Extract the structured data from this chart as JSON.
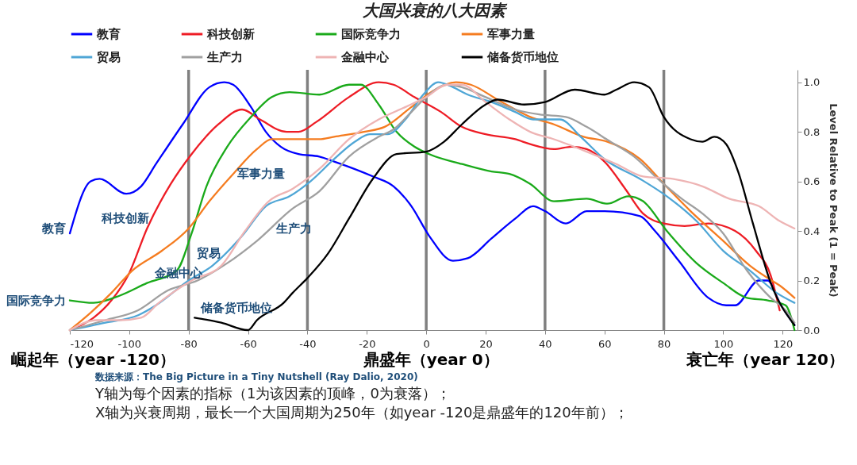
{
  "chart_data": {
    "type": "line",
    "title": "大国兴衰的八大因素",
    "ylabel": "Level Relative to Peak (1 = Peak)",
    "xlim": [
      -120,
      125
    ],
    "xticks": [
      -120,
      -100,
      -80,
      -60,
      -40,
      -20,
      0,
      20,
      40,
      60,
      80,
      100,
      120
    ],
    "ylim": [
      0,
      1.05
    ],
    "yticks": [
      {
        "value": 0,
        "label": "0.0"
      },
      {
        "value": 0.2,
        "label": "0.2"
      },
      {
        "value": 0.4,
        "label": "0.4"
      },
      {
        "value": 0.6,
        "label": "0.6"
      },
      {
        "value": 0.8,
        "label": "0.8"
      },
      {
        "value": 1,
        "label": "1.0"
      }
    ],
    "legend": "top",
    "series": [
      {
        "name": "教育",
        "color": "#0000ff",
        "x": [
          -120,
          -113,
          -110,
          -101,
          -96,
          -91,
          -82,
          -73,
          -68,
          -65,
          -59,
          -54,
          -49,
          -43,
          -36,
          -31,
          -18,
          -11,
          -5,
          1,
          9,
          14,
          22,
          30,
          36,
          40,
          47,
          54,
          60,
          72,
          77,
          85,
          95,
          101,
          104,
          112,
          115,
          119,
          124
        ],
        "values": [
          0.39,
          0.6,
          0.61,
          0.55,
          0.58,
          0.67,
          0.83,
          0.98,
          1.0,
          0.99,
          0.9,
          0.8,
          0.74,
          0.71,
          0.7,
          0.68,
          0.62,
          0.58,
          0.5,
          0.38,
          0.28,
          0.29,
          0.37,
          0.45,
          0.5,
          0.48,
          0.43,
          0.48,
          0.48,
          0.46,
          0.4,
          0.28,
          0.13,
          0.1,
          0.1,
          0.2,
          0.2,
          0.11,
          0.02
        ]
      },
      {
        "name": "科技创新",
        "color": "#ee1c25",
        "x": [
          -120,
          -112,
          -106,
          -100,
          -94,
          -86,
          -79,
          -70,
          -62,
          -56,
          -47,
          -43,
          -37,
          -26,
          -16,
          -11,
          -4,
          5,
          12,
          20,
          30,
          35,
          43,
          49,
          54,
          60,
          67,
          73,
          80,
          87,
          95,
          104,
          111,
          116,
          119
        ],
        "values": [
          0,
          0.05,
          0.12,
          0.23,
          0.41,
          0.59,
          0.71,
          0.83,
          0.89,
          0.85,
          0.8,
          0.8,
          0.84,
          0.94,
          1.0,
          0.99,
          0.94,
          0.88,
          0.82,
          0.79,
          0.77,
          0.75,
          0.73,
          0.74,
          0.73,
          0.68,
          0.57,
          0.47,
          0.43,
          0.42,
          0.43,
          0.4,
          0.32,
          0.22,
          0.08
        ]
      },
      {
        "name": "国际竞争力",
        "color": "#1aaa1a",
        "x": [
          -120,
          -112,
          -103,
          -94,
          -84,
          -79,
          -74,
          -67,
          -59,
          -52,
          -46,
          -36,
          -26,
          -22,
          -16,
          -10,
          -4,
          1,
          12,
          22,
          28,
          35,
          43,
          54,
          61,
          68,
          73,
          81,
          91,
          100,
          108,
          115,
          121,
          124
        ],
        "values": [
          0.12,
          0.11,
          0.14,
          0.19,
          0.24,
          0.39,
          0.58,
          0.74,
          0.86,
          0.94,
          0.96,
          0.95,
          0.99,
          0.99,
          0.91,
          0.8,
          0.74,
          0.71,
          0.67,
          0.64,
          0.63,
          0.59,
          0.52,
          0.53,
          0.51,
          0.54,
          0.52,
          0.4,
          0.27,
          0.19,
          0.13,
          0.12,
          0.1,
          0
        ]
      },
      {
        "name": "军事力量",
        "color": "#f57c20",
        "x": [
          -120,
          -113,
          -106,
          -99,
          -89,
          -80,
          -73,
          -65,
          -57,
          -52,
          -45,
          -36,
          -31,
          -21,
          -14,
          -5,
          3,
          10,
          15,
          24,
          30,
          35,
          43,
          53,
          61,
          72,
          80,
          89,
          100,
          109,
          115,
          119,
          124
        ],
        "values": [
          0,
          0.07,
          0.15,
          0.24,
          0.32,
          0.41,
          0.52,
          0.63,
          0.73,
          0.77,
          0.77,
          0.77,
          0.78,
          0.8,
          0.82,
          0.9,
          0.97,
          1.0,
          0.99,
          0.93,
          0.89,
          0.86,
          0.83,
          0.78,
          0.76,
          0.69,
          0.59,
          0.48,
          0.36,
          0.26,
          0.21,
          0.18,
          0.13
        ]
      },
      {
        "name": "贸易",
        "color": "#4fa6d6",
        "x": [
          -120,
          -108,
          -97,
          -91,
          -80,
          -72,
          -62,
          -54,
          -46,
          -39,
          -31,
          -24,
          -19,
          -13,
          -7,
          -1,
          4,
          9,
          14,
          22,
          30,
          36,
          45,
          52,
          60,
          72,
          81,
          91,
          100,
          109,
          118,
          124
        ],
        "values": [
          0,
          0.03,
          0.06,
          0.1,
          0.2,
          0.26,
          0.38,
          0.5,
          0.54,
          0.6,
          0.69,
          0.76,
          0.79,
          0.79,
          0.85,
          0.95,
          1.0,
          0.98,
          0.95,
          0.92,
          0.88,
          0.85,
          0.85,
          0.78,
          0.69,
          0.61,
          0.54,
          0.44,
          0.32,
          0.24,
          0.15,
          0.11
        ]
      },
      {
        "name": "生产力",
        "color": "#a0a0a0",
        "x": [
          -120,
          -108,
          -97,
          -87,
          -77,
          -67,
          -57,
          -45,
          -36,
          -26,
          -16,
          -11,
          -5,
          0,
          7,
          12,
          20,
          30,
          38,
          47,
          54,
          62,
          70,
          78,
          86,
          93,
          100,
          108,
          116,
          121,
          124
        ],
        "values": [
          0,
          0.04,
          0.08,
          0.16,
          0.2,
          0.27,
          0.36,
          0.49,
          0.56,
          0.7,
          0.78,
          0.81,
          0.88,
          0.94,
          0.99,
          0.98,
          0.94,
          0.89,
          0.87,
          0.86,
          0.82,
          0.76,
          0.7,
          0.61,
          0.53,
          0.47,
          0.39,
          0.24,
          0.13,
          0.08,
          0.03
        ]
      },
      {
        "name": "金融中心",
        "color": "#eeb4b4",
        "x": [
          -120,
          -111,
          -103,
          -96,
          -90,
          -79,
          -69,
          -61,
          -53,
          -45,
          -36,
          -26,
          -16,
          -7,
          0,
          7,
          12,
          20,
          28,
          35,
          43,
          54,
          64,
          73,
          83,
          93,
          102,
          112,
          119,
          124
        ],
        "values": [
          0,
          0.04,
          0.04,
          0.05,
          0.11,
          0.2,
          0.26,
          0.4,
          0.52,
          0.57,
          0.65,
          0.77,
          0.85,
          0.9,
          0.94,
          0.99,
          0.99,
          0.92,
          0.85,
          0.8,
          0.77,
          0.72,
          0.67,
          0.62,
          0.61,
          0.58,
          0.53,
          0.5,
          0.44,
          0.41
        ]
      },
      {
        "name": "储备货币地位",
        "color": "#000000",
        "x": [
          -78,
          -69,
          -60,
          -57,
          -48,
          -45,
          -40,
          -33,
          -26,
          -18,
          -10,
          0,
          6,
          12,
          20,
          24,
          33,
          40,
          50,
          60,
          64,
          70,
          75,
          80,
          89,
          93,
          97,
          101,
          105,
          110,
          116,
          124
        ],
        "values": [
          0.05,
          0.03,
          0,
          0.04,
          0.11,
          0.15,
          0.21,
          0.31,
          0.45,
          0.61,
          0.71,
          0.72,
          0.76,
          0.83,
          0.91,
          0.93,
          0.91,
          0.92,
          0.97,
          0.95,
          0.97,
          1.0,
          0.98,
          0.86,
          0.77,
          0.76,
          0.78,
          0.75,
          0.64,
          0.43,
          0.19,
          0.02
        ]
      }
    ],
    "ref_lines": [
      {
        "axis": "x",
        "value": -80,
        "color": "#808080"
      },
      {
        "axis": "x",
        "value": -40,
        "color": "#808080"
      },
      {
        "axis": "x",
        "value": 0,
        "color": "#808080"
      },
      {
        "axis": "x",
        "value": 40,
        "color": "#808080"
      },
      {
        "axis": "x",
        "value": 80,
        "color": "#808080"
      }
    ],
    "annotations": [
      "崛起年（year -120）",
      "鼎盛年（year 0）",
      "衰亡年（year 120）",
      "数据来源：The Big Picture in a Tiny Nutshell (Ray Dalio, 2020)",
      "Y轴为每个因素的指标（1为该因素的顶峰，0为衰落）；",
      "X轴为兴衰周期，最长一个大国周期为250年（如year -120是鼎盛年的120年前）；",
      {
        "text": "教育",
        "x": -120,
        "y": 0.41
      },
      {
        "text": "科技创新",
        "x": -92,
        "y": 0.45
      },
      {
        "text": "军事力量",
        "x": -65,
        "y": 0.63
      },
      {
        "text": "生产力",
        "x": -52,
        "y": 0.41
      },
      {
        "text": "贸易",
        "x": -68,
        "y": 0.31
      },
      {
        "text": "金融中心",
        "x": -74,
        "y": 0.23
      },
      {
        "text": "国际竞争力",
        "x": -120,
        "y": 0.12
      },
      {
        "text": "储备货币地位",
        "x": -50.6,
        "y": 0.09
      }
    ]
  }
}
